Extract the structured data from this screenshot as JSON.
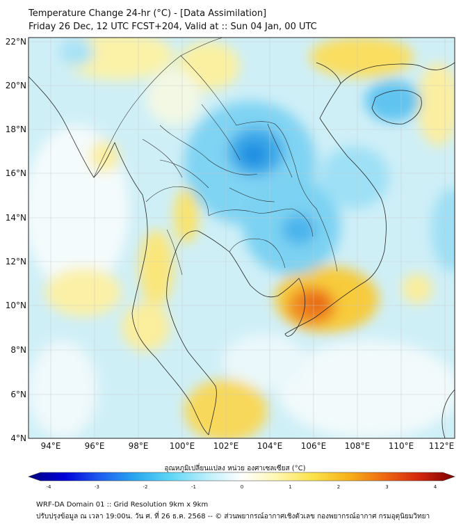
{
  "header": {
    "title_line1": "Temperature Change 24-hr (°C) - [Data Assimilation]",
    "title_line2": "Friday 26 Dec, 12 UTC FCST+204, Valid at :: Sun 04 Jan, 00 UTC"
  },
  "map": {
    "lat_labels": [
      "22°N",
      "20°N",
      "18°N",
      "16°N",
      "14°N",
      "12°N",
      "10°N",
      "8°N",
      "6°N",
      "4°N"
    ],
    "lon_labels": [
      "94°E",
      "96°E",
      "98°E",
      "100°E",
      "102°E",
      "104°E",
      "106°E",
      "108°E",
      "110°E",
      "112°E"
    ],
    "lat_range": [
      4,
      22.2
    ],
    "lon_range": [
      93,
      112.5
    ],
    "grid": true
  },
  "colorbar": {
    "title": "อุณหภูมิเปลี่ยนแปลง หน่วย องศาเซลเซียส (°C)",
    "ticks": [
      "-4",
      "-3",
      "-2",
      "-1",
      "0",
      "1",
      "2",
      "3",
      "4"
    ],
    "range": [
      -4,
      4
    ],
    "colors": [
      "#00007f",
      "#0000d8",
      "#1e5cf0",
      "#2aa8ef",
      "#5fd6f5",
      "#b9eefc",
      "#ffffff",
      "#fff7b0",
      "#fbe24a",
      "#f7b21a",
      "#ee6a12",
      "#d4260c",
      "#7a0000"
    ]
  },
  "footer": {
    "line1": "WRF-DA Domain 01 :: Grid Resolution 9km x 9km",
    "line2": "ปรับปรุงข้อมูล ณ เวลา 19:00น. วัน ศ. ที่ 26 ธ.ค. 2568 -- © ส่วนพยากรณ์อากาศเชิงตัวเลข กองพยากรณ์อากาศ กรมอุตุนิยมวิทยา"
  }
}
